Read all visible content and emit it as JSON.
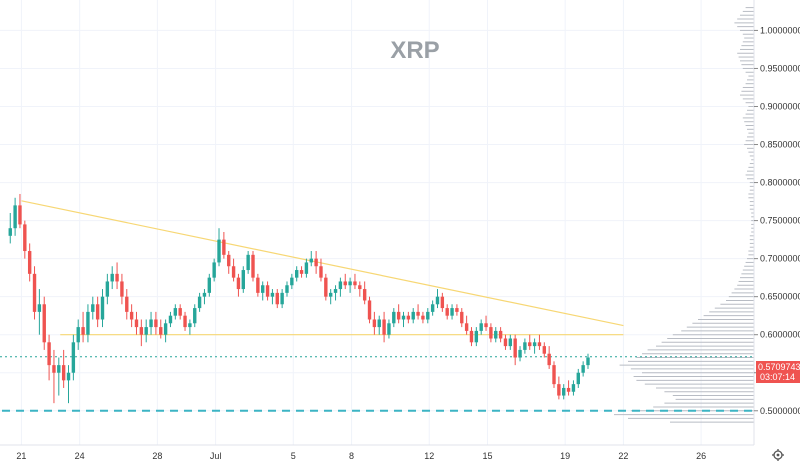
{
  "chart_data": {
    "type": "candlestick",
    "title": "XRP",
    "x_tick_labels": [
      "21",
      "24",
      "28",
      "Jul",
      "5",
      "8",
      "12",
      "15",
      "19",
      "22",
      "26"
    ],
    "y_tick_labels": [
      "1.00000000",
      "0.95000000",
      "0.90000000",
      "0.85000000",
      "0.80000000",
      "0.75000000",
      "0.70000000",
      "0.65000000",
      "0.60000000",
      "0.55000000",
      "0.50000000"
    ],
    "ylim": [
      0.455,
      1.04
    ],
    "current_price": "0.57097436",
    "countdown": "03:07:14",
    "grid": true,
    "colors": {
      "up": "#26a69a",
      "down": "#ef5350",
      "trendline": "#f7d774",
      "support_line": "#3cb4c4",
      "price_line": "#26a69a",
      "price_label_bg": "#ef5350",
      "volume_profile": "#b8bcc4",
      "title": "#9aa0a6"
    },
    "trendlines": [
      {
        "name": "descending-resistance",
        "from": [
          "Jun 21",
          0.776
        ],
        "to": [
          "Jul 22",
          0.612
        ]
      },
      {
        "name": "horizontal-support",
        "from": [
          "Jun 23",
          0.6
        ],
        "to": [
          "Jul 22",
          0.6
        ]
      },
      {
        "name": "dashed-support",
        "from": [
          "Jun 20",
          0.5
        ],
        "to": [
          "Jul 25",
          0.5
        ]
      }
    ],
    "volume_profile_levels": [
      0.485,
      0.49,
      0.495,
      0.5,
      0.505,
      0.51,
      0.515,
      0.52,
      0.525,
      0.53,
      0.535,
      0.54,
      0.545,
      0.55,
      0.555,
      0.56,
      0.565,
      0.57,
      0.575,
      0.58,
      0.585,
      0.59,
      0.595,
      0.6,
      0.605,
      0.61,
      0.615,
      0.62,
      0.625,
      0.63,
      0.635,
      0.64,
      0.645,
      0.65,
      0.655,
      0.66,
      0.665,
      0.67,
      0.675,
      0.68,
      0.685,
      0.69,
      0.695,
      0.7,
      0.705,
      0.71,
      0.715,
      0.72,
      0.725,
      0.73,
      0.735,
      0.74,
      0.745,
      0.75,
      0.755,
      0.76,
      0.765,
      0.77,
      0.775,
      0.78,
      0.785,
      0.79,
      0.795,
      0.8,
      0.805,
      0.81,
      0.815,
      0.82,
      0.825,
      0.83,
      0.835,
      0.84,
      0.845,
      0.85,
      0.855,
      0.86,
      0.865,
      0.87,
      0.875,
      0.88,
      0.885,
      0.89,
      0.895,
      0.9,
      0.905,
      0.91,
      0.915,
      0.92,
      0.925,
      0.93,
      0.935,
      0.94,
      0.945,
      0.95,
      0.955,
      0.96,
      0.965,
      0.97,
      0.975,
      0.98,
      0.985,
      0.99,
      0.995,
      1.0,
      1.005,
      1.01,
      1.015,
      1.02,
      1.025,
      1.03
    ],
    "volume_profile_values": [
      60,
      90,
      100,
      88,
      72,
      64,
      56,
      58,
      64,
      70,
      78,
      84,
      86,
      80,
      88,
      96,
      90,
      84,
      80,
      76,
      70,
      66,
      62,
      58,
      52,
      48,
      44,
      40,
      36,
      32,
      28,
      24,
      20,
      18,
      16,
      14,
      12,
      11,
      10,
      9,
      8,
      7,
      6,
      5,
      4,
      4,
      3,
      3,
      3,
      3,
      2,
      2,
      2,
      2,
      2,
      2,
      3,
      3,
      3,
      4,
      4,
      3,
      3,
      3,
      5,
      6,
      5,
      4,
      3,
      2,
      3,
      4,
      5,
      7,
      6,
      5,
      4,
      5,
      6,
      7,
      8,
      6,
      5,
      4,
      6,
      8,
      10,
      9,
      8,
      6,
      5,
      4,
      6,
      8,
      9,
      10,
      11,
      12,
      10,
      9,
      8,
      7,
      8,
      10,
      12,
      14,
      12,
      10,
      8,
      6
    ],
    "bars_per_day": 4,
    "candles": [
      [
        0.73,
        0.76,
        0.72,
        0.74
      ],
      [
        0.74,
        0.78,
        0.73,
        0.77
      ],
      [
        0.77,
        0.785,
        0.74,
        0.745
      ],
      [
        0.745,
        0.75,
        0.7,
        0.71
      ],
      [
        0.71,
        0.72,
        0.67,
        0.68
      ],
      [
        0.68,
        0.69,
        0.62,
        0.63
      ],
      [
        0.63,
        0.66,
        0.6,
        0.64
      ],
      [
        0.64,
        0.65,
        0.58,
        0.59
      ],
      [
        0.59,
        0.6,
        0.54,
        0.56
      ],
      [
        0.56,
        0.58,
        0.51,
        0.55
      ],
      [
        0.55,
        0.57,
        0.52,
        0.56
      ],
      [
        0.56,
        0.58,
        0.53,
        0.54
      ],
      [
        0.54,
        0.56,
        0.51,
        0.55
      ],
      [
        0.55,
        0.6,
        0.54,
        0.59
      ],
      [
        0.59,
        0.62,
        0.58,
        0.61
      ],
      [
        0.61,
        0.63,
        0.59,
        0.6
      ],
      [
        0.6,
        0.64,
        0.59,
        0.63
      ],
      [
        0.63,
        0.65,
        0.62,
        0.64
      ],
      [
        0.64,
        0.65,
        0.61,
        0.62
      ],
      [
        0.62,
        0.66,
        0.61,
        0.65
      ],
      [
        0.65,
        0.68,
        0.64,
        0.67
      ],
      [
        0.67,
        0.69,
        0.66,
        0.68
      ],
      [
        0.68,
        0.695,
        0.66,
        0.67
      ],
      [
        0.67,
        0.68,
        0.64,
        0.65
      ],
      [
        0.65,
        0.66,
        0.62,
        0.63
      ],
      [
        0.63,
        0.64,
        0.61,
        0.62
      ],
      [
        0.62,
        0.63,
        0.6,
        0.61
      ],
      [
        0.61,
        0.62,
        0.585,
        0.6
      ],
      [
        0.6,
        0.62,
        0.59,
        0.61
      ],
      [
        0.61,
        0.63,
        0.6,
        0.62
      ],
      [
        0.62,
        0.63,
        0.6,
        0.61
      ],
      [
        0.61,
        0.62,
        0.595,
        0.6
      ],
      [
        0.6,
        0.62,
        0.59,
        0.615
      ],
      [
        0.615,
        0.63,
        0.61,
        0.625
      ],
      [
        0.625,
        0.64,
        0.62,
        0.635
      ],
      [
        0.635,
        0.64,
        0.62,
        0.625
      ],
      [
        0.625,
        0.63,
        0.605,
        0.61
      ],
      [
        0.61,
        0.62,
        0.6,
        0.615
      ],
      [
        0.615,
        0.64,
        0.61,
        0.635
      ],
      [
        0.635,
        0.655,
        0.63,
        0.65
      ],
      [
        0.65,
        0.66,
        0.64,
        0.655
      ],
      [
        0.655,
        0.68,
        0.65,
        0.675
      ],
      [
        0.675,
        0.7,
        0.67,
        0.695
      ],
      [
        0.695,
        0.74,
        0.69,
        0.725
      ],
      [
        0.725,
        0.735,
        0.7,
        0.705
      ],
      [
        0.705,
        0.71,
        0.68,
        0.69
      ],
      [
        0.69,
        0.7,
        0.67,
        0.675
      ],
      [
        0.675,
        0.68,
        0.65,
        0.66
      ],
      [
        0.66,
        0.69,
        0.655,
        0.685
      ],
      [
        0.685,
        0.71,
        0.68,
        0.705
      ],
      [
        0.705,
        0.71,
        0.67,
        0.675
      ],
      [
        0.675,
        0.68,
        0.65,
        0.655
      ],
      [
        0.655,
        0.67,
        0.645,
        0.665
      ],
      [
        0.665,
        0.67,
        0.645,
        0.65
      ],
      [
        0.65,
        0.66,
        0.64,
        0.655
      ],
      [
        0.655,
        0.66,
        0.635,
        0.64
      ],
      [
        0.64,
        0.66,
        0.635,
        0.655
      ],
      [
        0.655,
        0.67,
        0.65,
        0.665
      ],
      [
        0.665,
        0.68,
        0.66,
        0.675
      ],
      [
        0.675,
        0.69,
        0.67,
        0.685
      ],
      [
        0.685,
        0.69,
        0.675,
        0.68
      ],
      [
        0.68,
        0.7,
        0.675,
        0.695
      ],
      [
        0.695,
        0.71,
        0.69,
        0.7
      ],
      [
        0.7,
        0.71,
        0.68,
        0.69
      ],
      [
        0.69,
        0.7,
        0.67,
        0.675
      ],
      [
        0.675,
        0.68,
        0.645,
        0.65
      ],
      [
        0.65,
        0.66,
        0.64,
        0.655
      ],
      [
        0.655,
        0.665,
        0.645,
        0.66
      ],
      [
        0.66,
        0.675,
        0.65,
        0.67
      ],
      [
        0.67,
        0.68,
        0.66,
        0.665
      ],
      [
        0.665,
        0.675,
        0.655,
        0.67
      ],
      [
        0.67,
        0.68,
        0.66,
        0.665
      ],
      [
        0.665,
        0.67,
        0.65,
        0.66
      ],
      [
        0.66,
        0.67,
        0.64,
        0.645
      ],
      [
        0.645,
        0.65,
        0.615,
        0.62
      ],
      [
        0.62,
        0.63,
        0.6,
        0.61
      ],
      [
        0.61,
        0.625,
        0.6,
        0.62
      ],
      [
        0.62,
        0.63,
        0.59,
        0.6
      ],
      [
        0.6,
        0.62,
        0.595,
        0.615
      ],
      [
        0.615,
        0.635,
        0.61,
        0.63
      ],
      [
        0.63,
        0.64,
        0.615,
        0.62
      ],
      [
        0.62,
        0.63,
        0.61,
        0.625
      ],
      [
        0.625,
        0.63,
        0.615,
        0.62
      ],
      [
        0.62,
        0.635,
        0.615,
        0.63
      ],
      [
        0.63,
        0.64,
        0.62,
        0.625
      ],
      [
        0.625,
        0.63,
        0.615,
        0.62
      ],
      [
        0.62,
        0.635,
        0.615,
        0.63
      ],
      [
        0.63,
        0.645,
        0.625,
        0.64
      ],
      [
        0.64,
        0.66,
        0.635,
        0.65
      ],
      [
        0.65,
        0.655,
        0.63,
        0.635
      ],
      [
        0.635,
        0.64,
        0.62,
        0.625
      ],
      [
        0.625,
        0.64,
        0.62,
        0.635
      ],
      [
        0.635,
        0.64,
        0.625,
        0.63
      ],
      [
        0.63,
        0.635,
        0.61,
        0.615
      ],
      [
        0.615,
        0.625,
        0.6,
        0.605
      ],
      [
        0.605,
        0.61,
        0.585,
        0.59
      ],
      [
        0.59,
        0.61,
        0.585,
        0.605
      ],
      [
        0.605,
        0.62,
        0.6,
        0.615
      ],
      [
        0.615,
        0.625,
        0.605,
        0.61
      ],
      [
        0.61,
        0.615,
        0.59,
        0.595
      ],
      [
        0.595,
        0.61,
        0.59,
        0.605
      ],
      [
        0.605,
        0.61,
        0.59,
        0.595
      ],
      [
        0.595,
        0.6,
        0.58,
        0.585
      ],
      [
        0.585,
        0.6,
        0.58,
        0.595
      ],
      [
        0.595,
        0.6,
        0.56,
        0.57
      ],
      [
        0.57,
        0.585,
        0.565,
        0.58
      ],
      [
        0.58,
        0.595,
        0.575,
        0.59
      ],
      [
        0.59,
        0.6,
        0.58,
        0.585
      ],
      [
        0.585,
        0.595,
        0.575,
        0.59
      ],
      [
        0.59,
        0.6,
        0.58,
        0.585
      ],
      [
        0.585,
        0.59,
        0.57,
        0.575
      ],
      [
        0.575,
        0.585,
        0.555,
        0.56
      ],
      [
        0.56,
        0.565,
        0.53,
        0.535
      ],
      [
        0.535,
        0.545,
        0.515,
        0.52
      ],
      [
        0.52,
        0.535,
        0.515,
        0.53
      ],
      [
        0.53,
        0.54,
        0.52,
        0.525
      ],
      [
        0.525,
        0.54,
        0.52,
        0.535
      ],
      [
        0.535,
        0.555,
        0.53,
        0.55
      ],
      [
        0.55,
        0.565,
        0.545,
        0.56
      ],
      [
        0.56,
        0.575,
        0.555,
        0.57
      ]
    ]
  }
}
